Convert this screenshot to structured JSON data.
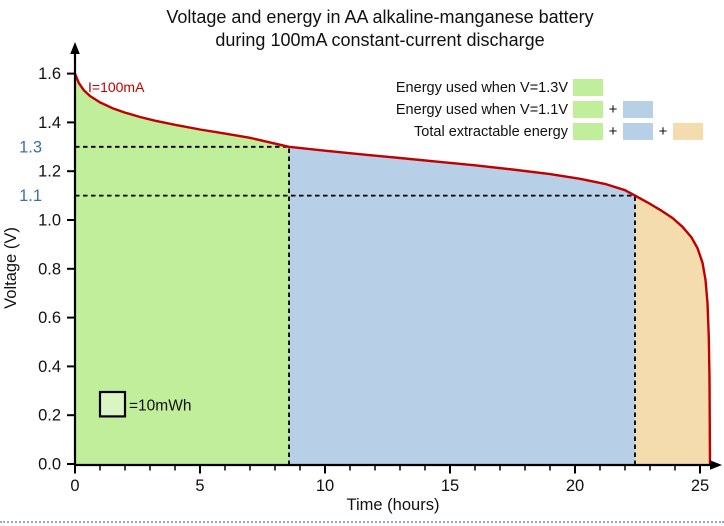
{
  "title": {
    "line1": "Voltage and energy in AA alkaline-manganese battery",
    "line2": "during 100mA constant-current discharge"
  },
  "chart_data": {
    "type": "area",
    "title": "Voltage and energy in AA alkaline-manganese battery during 100mA constant-current discharge",
    "xlabel": "Time (hours)",
    "ylabel": "Voltage (V)",
    "xlim": [
      0,
      25.8
    ],
    "ylim": [
      0,
      1.65
    ],
    "x_major_ticks": [
      0,
      5,
      10,
      15,
      20,
      25
    ],
    "x_minor_tick_step": 1,
    "y_ticks": [
      0.0,
      0.2,
      0.4,
      0.6,
      0.8,
      1.0,
      1.2,
      1.4,
      1.6
    ],
    "grid": false,
    "curve_label": "I=100mA",
    "curve_color": "#c00000",
    "curve_points": [
      [
        0,
        1.6
      ],
      [
        0.15,
        1.562
      ],
      [
        0.35,
        1.532
      ],
      [
        0.6,
        1.508
      ],
      [
        1,
        1.482
      ],
      [
        1.5,
        1.458
      ],
      [
        2,
        1.44
      ],
      [
        2.6,
        1.422
      ],
      [
        3.2,
        1.407
      ],
      [
        4,
        1.39
      ],
      [
        5,
        1.371
      ],
      [
        6,
        1.354
      ],
      [
        7,
        1.337
      ],
      [
        7.8,
        1.318
      ],
      [
        8.56,
        1.3
      ],
      [
        10,
        1.284
      ],
      [
        11.5,
        1.269
      ],
      [
        13,
        1.254
      ],
      [
        14.5,
        1.239
      ],
      [
        16,
        1.224
      ],
      [
        17.5,
        1.207
      ],
      [
        19,
        1.188
      ],
      [
        20.2,
        1.169
      ],
      [
        21.2,
        1.148
      ],
      [
        22,
        1.122
      ],
      [
        22.4,
        1.1
      ],
      [
        22.9,
        1.072
      ],
      [
        23.4,
        1.042
      ],
      [
        23.9,
        1.008
      ],
      [
        24.3,
        0.972
      ],
      [
        24.65,
        0.93
      ],
      [
        24.9,
        0.885
      ],
      [
        25.1,
        0.825
      ],
      [
        25.22,
        0.755
      ],
      [
        25.3,
        0.66
      ],
      [
        25.35,
        0.52
      ],
      [
        25.38,
        0.35
      ],
      [
        25.4,
        0.0
      ]
    ],
    "regions": [
      {
        "name": "energy-v13",
        "color": "#c1ee9b",
        "t_start": 0,
        "t_end": 8.56
      },
      {
        "name": "energy-v11",
        "color": "#b8cfe8",
        "t_start": 8.56,
        "t_end": 22.4
      },
      {
        "name": "energy-total",
        "color": "#f5dcae",
        "t_start": 22.4,
        "t_end": 25.4
      }
    ],
    "guides": [
      {
        "label": "1.3",
        "voltage": 1.3,
        "t_end": 8.56
      },
      {
        "label": "1.1",
        "voltage": 1.1,
        "t_end": 22.4
      }
    ],
    "guide_label_color": "#3a6fa8",
    "legend": [
      {
        "label": "Energy used when V=1.3V",
        "swatches": [
          "#c1ee9b"
        ]
      },
      {
        "label": "Energy used when V=1.1V",
        "swatches": [
          "#c1ee9b",
          "#b8cfe8"
        ]
      },
      {
        "label": "Total extractable energy",
        "swatches": [
          "#c1ee9b",
          "#b8cfe8",
          "#f5dcae"
        ]
      }
    ],
    "unit_box": {
      "label": "=10mWh",
      "width_hours": 1,
      "height_volts": 0.1,
      "t_pos": 1,
      "v_pos": 0.195
    }
  }
}
